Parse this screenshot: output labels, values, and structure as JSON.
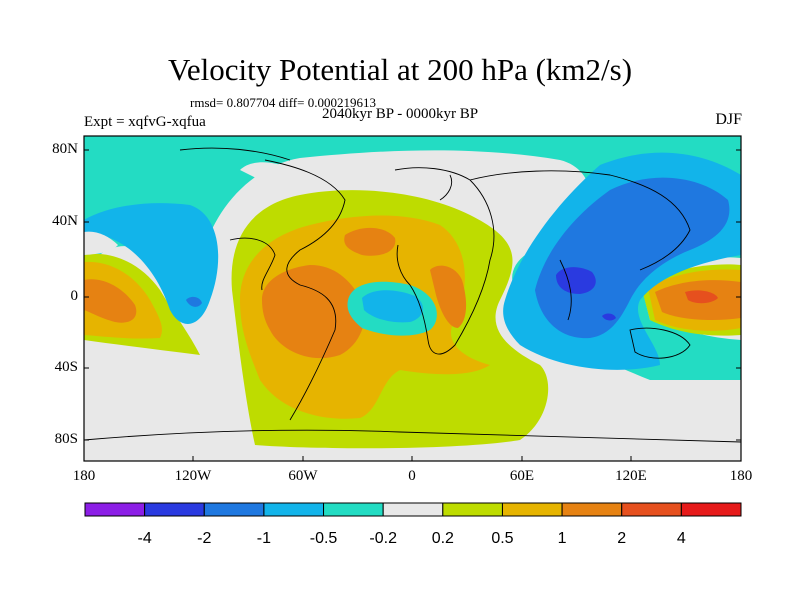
{
  "title": "Velocity Potential at 200 hPa (km2/s)",
  "stats": "rmsd= 0.807704 diff= 0.000219613",
  "period": "2040kyr BP - 0000kyr BP",
  "experiment": "Expt = xqfvG-xqfua",
  "season": "DJF",
  "map": {
    "lat_ticks": [
      "80N",
      "40N",
      "0",
      "40S",
      "80S"
    ],
    "lon_ticks": [
      "180",
      "120W",
      "60W",
      "0",
      "60E",
      "120E",
      "180"
    ]
  },
  "colorbar": {
    "labels": [
      "-4",
      "-2",
      "-1",
      "-0.5",
      "-0.2",
      "0.2",
      "0.5",
      "1",
      "2",
      "4"
    ],
    "colors": [
      "#8c1ee6",
      "#2a3ae0",
      "#1f78e0",
      "#12b4ea",
      "#23dcc3",
      "#e8e8e8",
      "#bedc00",
      "#e6b400",
      "#e68212",
      "#e6501e",
      "#e61a1a"
    ]
  }
}
